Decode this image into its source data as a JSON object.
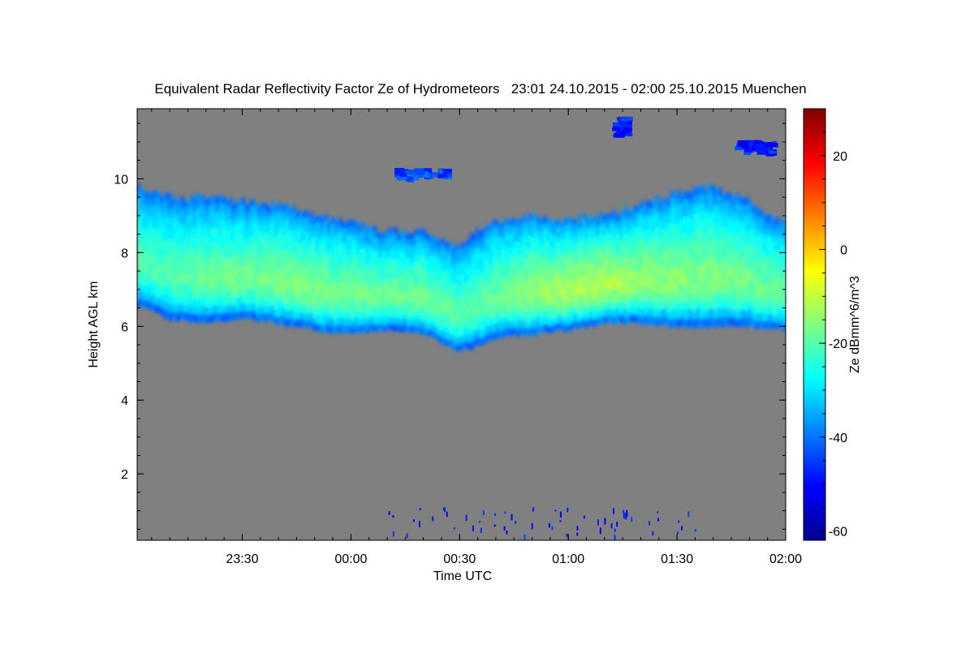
{
  "chart_data": {
    "type": "heatmap",
    "title": "Equivalent Radar Reflectivity Factor Ze of Hydrometeors   23:01 24.10.2015 - 02:00 25.10.2015 Muenchen",
    "xlabel": "Time UTC",
    "ylabel": "Height AGL km",
    "colorbar_label": "Ze dBmm^6/m^3",
    "x_unit": "hours_since_23:00",
    "xlim": [
      "23:01",
      "02:00"
    ],
    "ylim": [
      0.2,
      11.9
    ],
    "x_ticks": [
      "23:30",
      "00:00",
      "00:30",
      "01:00",
      "01:30",
      "02:00"
    ],
    "y_ticks": [
      "2",
      "4",
      "6",
      "8",
      "10"
    ],
    "colorbar": {
      "range": [
        -62,
        30
      ],
      "ticks": [
        "-60",
        "-40",
        "-20",
        "0",
        "20"
      ],
      "colormap": "jet"
    },
    "background_color": "#808080",
    "cloud_layer": {
      "time": [
        "23:01",
        "23:10",
        "23:20",
        "23:30",
        "23:40",
        "23:50",
        "00:00",
        "00:10",
        "00:20",
        "00:25",
        "00:30",
        "00:35",
        "00:40",
        "00:50",
        "01:00",
        "01:10",
        "01:20",
        "01:30",
        "01:40",
        "01:50",
        "02:00"
      ],
      "base_km": [
        6.6,
        6.2,
        6.1,
        6.2,
        6.1,
        5.9,
        5.8,
        5.9,
        5.8,
        5.6,
        5.3,
        5.5,
        5.7,
        5.8,
        5.9,
        6.1,
        6.1,
        6.0,
        6.0,
        6.0,
        5.9
      ],
      "top_km": [
        9.8,
        9.5,
        9.5,
        9.4,
        9.3,
        9.0,
        8.8,
        8.6,
        8.6,
        8.4,
        8.1,
        8.6,
        8.9,
        9.0,
        8.9,
        9.0,
        9.3,
        9.6,
        9.8,
        9.4,
        8.8
      ],
      "core_ze_dbz": [
        -20,
        -20,
        -18,
        -17,
        -16,
        -16,
        -17,
        -18,
        -17,
        -18,
        -20,
        -19,
        -18,
        -14,
        -12,
        -12,
        -14,
        -15,
        -16,
        -17,
        -18
      ],
      "edge_ze_dbz": -45
    },
    "upper_patches": [
      {
        "time_start": "00:12",
        "time_end": "00:28",
        "base_km": 9.9,
        "top_km": 10.3,
        "ze_dbz": -44
      },
      {
        "time_start": "01:12",
        "time_end": "01:18",
        "base_km": 11.1,
        "top_km": 11.7,
        "ze_dbz": -48
      },
      {
        "time_start": "01:45",
        "time_end": "01:58",
        "base_km": 10.6,
        "top_km": 11.1,
        "ze_dbz": -48
      }
    ],
    "near_ground_echo": {
      "base_km": 0.2,
      "top_km": 1.1,
      "time_start": "00:10",
      "time_end": "01:40",
      "ze_dbz": -48
    }
  }
}
